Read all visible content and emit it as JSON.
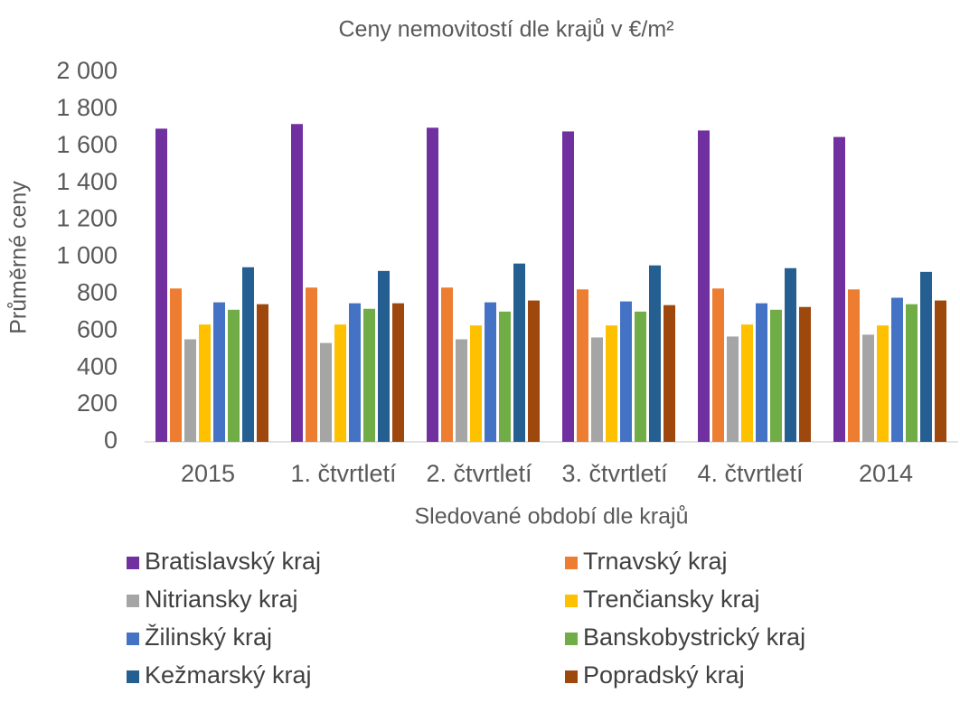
{
  "chart_data": {
    "type": "bar",
    "title": "Ceny nemovitostí dle krajů v €/m²",
    "x_label": "Sledované období dle krajů",
    "y_label": "Průměrné ceny",
    "categories": [
      "2015",
      "1. čtvrtletí",
      "2. čtvrtletí",
      "3. čtvrtletí",
      "4. čtvrtletí",
      "2014"
    ],
    "series": [
      {
        "name": "Bratislavský kraj",
        "color": "#7030a0",
        "values": [
          1695,
          1720,
          1700,
          1680,
          1685,
          1650
        ]
      },
      {
        "name": "Trnavský kraj",
        "color": "#ed7d31",
        "values": [
          830,
          835,
          835,
          825,
          830,
          825
        ]
      },
      {
        "name": "Nitriansky kraj",
        "color": "#a5a5a5",
        "values": [
          555,
          535,
          555,
          565,
          570,
          580
        ]
      },
      {
        "name": "Trenčiansky kraj",
        "color": "#ffc000",
        "values": [
          635,
          635,
          630,
          630,
          635,
          630
        ]
      },
      {
        "name": "Žilinský kraj",
        "color": "#4472c4",
        "values": [
          755,
          750,
          755,
          760,
          750,
          780
        ]
      },
      {
        "name": "Banskobystrický kraj",
        "color": "#70ad47",
        "values": [
          715,
          720,
          705,
          705,
          715,
          745
        ]
      },
      {
        "name": "Kežmarský kraj",
        "color": "#255e91",
        "values": [
          945,
          925,
          965,
          955,
          940,
          920
        ]
      },
      {
        "name": "Popradský kraj",
        "color": "#9e480e",
        "values": [
          745,
          750,
          765,
          740,
          730,
          765
        ]
      }
    ],
    "ylim": [
      0,
      2000
    ],
    "yticks": [
      0,
      200,
      400,
      600,
      800,
      {
        "value": 1000,
        "label": "1 000"
      },
      {
        "value": 1200,
        "label": "1 200"
      },
      {
        "value": 1400,
        "label": "1 400"
      },
      {
        "value": 1600,
        "label": "1 600"
      },
      {
        "value": 1800,
        "label": "1 800"
      },
      {
        "value": 2000,
        "label": "2 000"
      }
    ],
    "grid": false,
    "legend": "bottom"
  }
}
